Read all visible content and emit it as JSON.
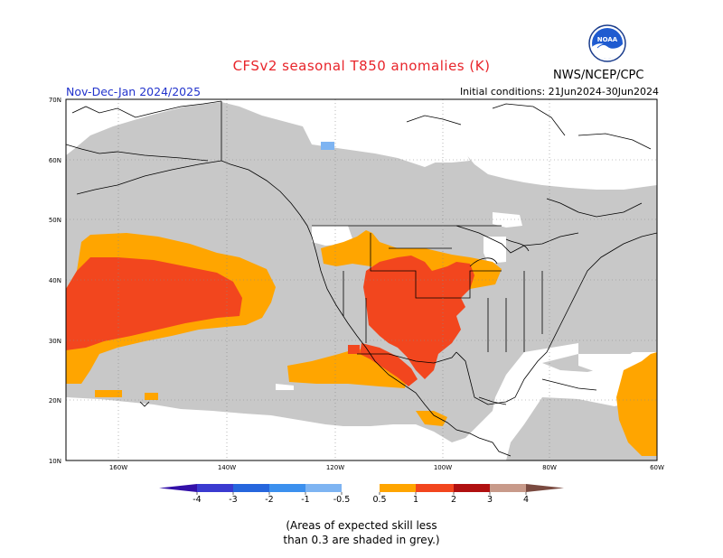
{
  "header": {
    "title": "CFSv2 seasonal T850 anomalies (K)",
    "season": "Nov-Dec-Jan 2024/2025",
    "initial_conditions": "Initial conditions: 21Jun2024-30Jun2024",
    "agency": "NWS/NCEP/CPC",
    "logo_text": "NOAA"
  },
  "map": {
    "lat_labels": [
      "70N",
      "60N",
      "50N",
      "40N",
      "30N",
      "20N",
      "10N"
    ],
    "lon_labels": [
      "160W",
      "140W",
      "120W",
      "100W",
      "80W",
      "60W"
    ],
    "colors": {
      "grey": "#c8c8c8",
      "orange": "#ffa500",
      "red": "#f2461e",
      "darkred": "#a01010",
      "lightblue": "#7eb4f2"
    }
  },
  "legend": {
    "labels": [
      "-4",
      "-3",
      "-2",
      "-1",
      "-0.5",
      "0.5",
      "1",
      "2",
      "3",
      "4"
    ],
    "colors": [
      "#3310a8",
      "#3a3ad0",
      "#2666dd",
      "#3c90ee",
      "#7eb4f2",
      "#ffffff",
      "#ffa500",
      "#f2461e",
      "#b01010",
      "#c89a8a",
      "#7a4a40"
    ]
  },
  "note": {
    "line1": "(Areas of expected skill less",
    "line2": "than 0.3 are shaded in grey.)"
  }
}
